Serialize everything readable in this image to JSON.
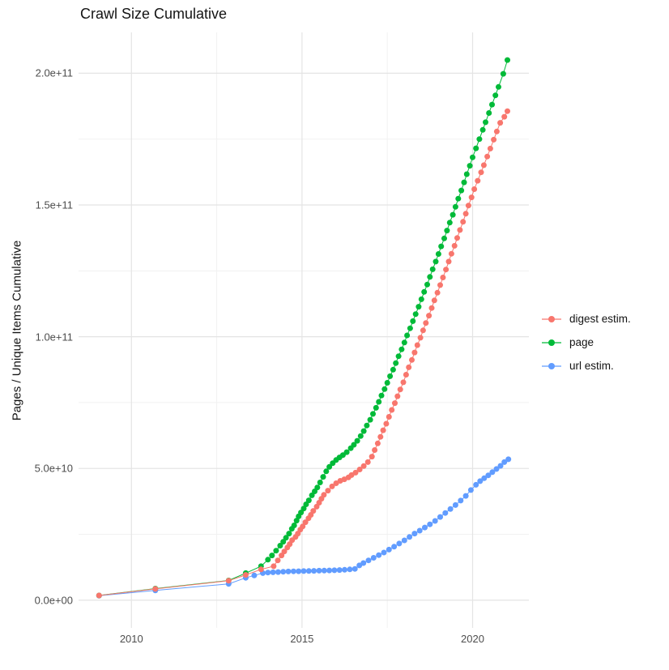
{
  "chart_data": {
    "type": "scatter",
    "title": "Crawl Size Cumulative",
    "xlabel": "",
    "ylabel": "Pages / Unique Items Cumulative",
    "legend_position": "right",
    "grid": "on",
    "colors": {
      "background": "#ffffff",
      "grid_major": "#e4e4e4",
      "grid_minor": "#f1f1f1",
      "title_text": "#141414",
      "tick_text": "#4d4d4d"
    },
    "x_axis": {
      "domain": [
        2008.45,
        2021.65
      ],
      "major_ticks": [
        {
          "value": 2010,
          "label": "2010"
        },
        {
          "value": 2015,
          "label": "2015"
        },
        {
          "value": 2020,
          "label": "2020"
        }
      ],
      "minor_ticks": [
        2012.5,
        2017.5
      ]
    },
    "y_axis": {
      "domain_billions": [
        -10.5,
        215.5
      ],
      "major_ticks": [
        {
          "value": 0,
          "label": "0.0e+00"
        },
        {
          "value": 50,
          "label": "5.0e+10"
        },
        {
          "value": 100,
          "label": "1.0e+11"
        },
        {
          "value": 150,
          "label": "1.5e+11"
        },
        {
          "value": 200,
          "label": "2.0e+11"
        }
      ],
      "minor_ticks": [
        25,
        75,
        125,
        175
      ]
    },
    "value_unit": "billions (1e9) of pages / unique items, cumulative",
    "series": [
      {
        "name": "url estim.",
        "color": "#619CFF",
        "points": [
          [
            2009.05,
            1.7
          ],
          [
            2010.7,
            3.7
          ],
          [
            2012.85,
            6.2
          ],
          [
            2013.35,
            8.5
          ],
          [
            2013.6,
            9.4
          ],
          [
            2013.85,
            10.3
          ],
          [
            2014.0,
            10.5
          ],
          [
            2014.15,
            10.6
          ],
          [
            2014.3,
            10.7
          ],
          [
            2014.45,
            10.8
          ],
          [
            2014.6,
            10.9
          ],
          [
            2014.75,
            10.95
          ],
          [
            2014.9,
            11.0
          ],
          [
            2015.05,
            11.05
          ],
          [
            2015.2,
            11.1
          ],
          [
            2015.35,
            11.15
          ],
          [
            2015.5,
            11.2
          ],
          [
            2015.65,
            11.25
          ],
          [
            2015.8,
            11.3
          ],
          [
            2015.95,
            11.35
          ],
          [
            2016.1,
            11.45
          ],
          [
            2016.25,
            11.55
          ],
          [
            2016.4,
            11.7
          ],
          [
            2016.55,
            11.9
          ],
          [
            2016.68,
            13.2
          ],
          [
            2016.8,
            14.1
          ],
          [
            2016.95,
            15.1
          ],
          [
            2017.1,
            16.1
          ],
          [
            2017.25,
            17.1
          ],
          [
            2017.4,
            18.1
          ],
          [
            2017.55,
            19.2
          ],
          [
            2017.7,
            20.3
          ],
          [
            2017.85,
            21.5
          ],
          [
            2018.0,
            22.7
          ],
          [
            2018.15,
            24.0
          ],
          [
            2018.3,
            25.3
          ],
          [
            2018.45,
            26.4
          ],
          [
            2018.6,
            27.6
          ],
          [
            2018.75,
            28.8
          ],
          [
            2018.9,
            30.1
          ],
          [
            2019.05,
            31.6
          ],
          [
            2019.2,
            33.1
          ],
          [
            2019.35,
            34.6
          ],
          [
            2019.5,
            36.1
          ],
          [
            2019.65,
            37.8
          ],
          [
            2019.8,
            39.6
          ],
          [
            2019.95,
            41.8
          ],
          [
            2020.1,
            43.8
          ],
          [
            2020.22,
            45.2
          ],
          [
            2020.34,
            46.3
          ],
          [
            2020.46,
            47.4
          ],
          [
            2020.58,
            48.6
          ],
          [
            2020.7,
            49.8
          ],
          [
            2020.82,
            51.0
          ],
          [
            2020.93,
            52.4
          ],
          [
            2021.05,
            53.5
          ]
        ]
      },
      {
        "name": "page",
        "color": "#00BA38",
        "points": [
          [
            2009.05,
            1.8
          ],
          [
            2010.7,
            4.4
          ],
          [
            2012.85,
            7.5
          ],
          [
            2013.35,
            10.3
          ],
          [
            2013.8,
            12.9
          ],
          [
            2014.0,
            15.4
          ],
          [
            2014.12,
            17.0
          ],
          [
            2014.24,
            18.8
          ],
          [
            2014.36,
            20.7
          ],
          [
            2014.45,
            22.2
          ],
          [
            2014.53,
            23.7
          ],
          [
            2014.62,
            25.3
          ],
          [
            2014.7,
            27.1
          ],
          [
            2014.77,
            28.4
          ],
          [
            2014.84,
            30.2
          ],
          [
            2014.9,
            31.8
          ],
          [
            2014.97,
            33.3
          ],
          [
            2015.05,
            34.8
          ],
          [
            2015.12,
            36.4
          ],
          [
            2015.2,
            37.9
          ],
          [
            2015.29,
            39.8
          ],
          [
            2015.37,
            41.3
          ],
          [
            2015.45,
            42.8
          ],
          [
            2015.53,
            44.7
          ],
          [
            2015.62,
            46.8
          ],
          [
            2015.71,
            48.9
          ],
          [
            2015.8,
            50.6
          ],
          [
            2015.9,
            52.0
          ],
          [
            2016.0,
            53.2
          ],
          [
            2016.1,
            54.2
          ],
          [
            2016.2,
            55.1
          ],
          [
            2016.31,
            56.2
          ],
          [
            2016.43,
            57.7
          ],
          [
            2016.52,
            59.0
          ],
          [
            2016.62,
            60.5
          ],
          [
            2016.72,
            62.3
          ],
          [
            2016.81,
            64.2
          ],
          [
            2016.9,
            66.3
          ],
          [
            2017.0,
            68.5
          ],
          [
            2017.08,
            70.7
          ],
          [
            2017.17,
            73.0
          ],
          [
            2017.25,
            75.3
          ],
          [
            2017.33,
            77.7
          ],
          [
            2017.42,
            80.1
          ],
          [
            2017.5,
            82.5
          ],
          [
            2017.58,
            85.0
          ],
          [
            2017.67,
            87.5
          ],
          [
            2017.75,
            90.0
          ],
          [
            2017.83,
            92.6
          ],
          [
            2017.92,
            95.2
          ],
          [
            2018.0,
            97.8
          ],
          [
            2018.08,
            100.5
          ],
          [
            2018.17,
            103.2
          ],
          [
            2018.25,
            105.9
          ],
          [
            2018.33,
            108.6
          ],
          [
            2018.42,
            111.4
          ],
          [
            2018.5,
            114.2
          ],
          [
            2018.58,
            117.0
          ],
          [
            2018.67,
            119.8
          ],
          [
            2018.75,
            122.7
          ],
          [
            2018.83,
            125.6
          ],
          [
            2018.92,
            128.5
          ],
          [
            2019.0,
            131.4
          ],
          [
            2019.08,
            134.3
          ],
          [
            2019.17,
            137.3
          ],
          [
            2019.25,
            140.3
          ],
          [
            2019.33,
            143.3
          ],
          [
            2019.42,
            146.3
          ],
          [
            2019.5,
            149.3
          ],
          [
            2019.58,
            152.4
          ],
          [
            2019.67,
            155.5
          ],
          [
            2019.75,
            158.6
          ],
          [
            2019.83,
            161.7
          ],
          [
            2019.92,
            164.9
          ],
          [
            2020.0,
            168.1
          ],
          [
            2020.1,
            171.5
          ],
          [
            2020.2,
            175.0
          ],
          [
            2020.3,
            178.5
          ],
          [
            2020.38,
            181.4
          ],
          [
            2020.48,
            184.9
          ],
          [
            2020.57,
            188.1
          ],
          [
            2020.67,
            191.6
          ],
          [
            2020.76,
            194.8
          ],
          [
            2020.9,
            199.8
          ],
          [
            2021.02,
            205.0
          ]
        ]
      },
      {
        "name": "digest estim.",
        "color": "#F8766D",
        "points": [
          [
            2009.05,
            1.8
          ],
          [
            2010.7,
            4.3
          ],
          [
            2012.85,
            7.4
          ],
          [
            2013.35,
            9.6
          ],
          [
            2013.8,
            11.7
          ],
          [
            2014.17,
            12.9
          ],
          [
            2014.29,
            15.1
          ],
          [
            2014.4,
            17.0
          ],
          [
            2014.48,
            18.5
          ],
          [
            2014.57,
            20.0
          ],
          [
            2014.64,
            21.3
          ],
          [
            2014.71,
            22.8
          ],
          [
            2014.81,
            24.0
          ],
          [
            2014.88,
            25.3
          ],
          [
            2014.95,
            26.8
          ],
          [
            2015.02,
            28.0
          ],
          [
            2015.1,
            29.6
          ],
          [
            2015.19,
            31.1
          ],
          [
            2015.26,
            32.4
          ],
          [
            2015.33,
            33.9
          ],
          [
            2015.43,
            35.5
          ],
          [
            2015.5,
            37.0
          ],
          [
            2015.57,
            38.5
          ],
          [
            2015.64,
            40.0
          ],
          [
            2015.76,
            41.6
          ],
          [
            2015.88,
            43.2
          ],
          [
            2016.0,
            44.4
          ],
          [
            2016.12,
            45.3
          ],
          [
            2016.24,
            45.9
          ],
          [
            2016.36,
            46.6
          ],
          [
            2016.45,
            47.5
          ],
          [
            2016.57,
            48.4
          ],
          [
            2016.69,
            49.6
          ],
          [
            2016.81,
            50.9
          ],
          [
            2016.93,
            52.4
          ],
          [
            2017.05,
            54.5
          ],
          [
            2017.13,
            57.0
          ],
          [
            2017.22,
            59.5
          ],
          [
            2017.3,
            62.0
          ],
          [
            2017.38,
            64.5
          ],
          [
            2017.47,
            67.0
          ],
          [
            2017.55,
            69.6
          ],
          [
            2017.63,
            72.2
          ],
          [
            2017.72,
            74.8
          ],
          [
            2017.8,
            77.4
          ],
          [
            2017.88,
            80.0
          ],
          [
            2017.97,
            82.7
          ],
          [
            2018.05,
            85.6
          ],
          [
            2018.13,
            88.4
          ],
          [
            2018.22,
            91.2
          ],
          [
            2018.3,
            94.0
          ],
          [
            2018.38,
            96.8
          ],
          [
            2018.47,
            99.6
          ],
          [
            2018.55,
            102.4
          ],
          [
            2018.63,
            105.2
          ],
          [
            2018.72,
            108.0
          ],
          [
            2018.8,
            110.9
          ],
          [
            2018.88,
            113.8
          ],
          [
            2018.97,
            116.7
          ],
          [
            2019.05,
            119.6
          ],
          [
            2019.13,
            122.5
          ],
          [
            2019.22,
            125.5
          ],
          [
            2019.3,
            128.5
          ],
          [
            2019.38,
            131.5
          ],
          [
            2019.47,
            134.5
          ],
          [
            2019.55,
            137.5
          ],
          [
            2019.63,
            140.5
          ],
          [
            2019.72,
            143.6
          ],
          [
            2019.8,
            146.7
          ],
          [
            2019.88,
            149.8
          ],
          [
            2019.97,
            152.9
          ],
          [
            2020.05,
            156.0
          ],
          [
            2020.15,
            159.2
          ],
          [
            2020.25,
            162.4
          ],
          [
            2020.33,
            165.1
          ],
          [
            2020.43,
            168.4
          ],
          [
            2020.52,
            171.4
          ],
          [
            2020.62,
            174.8
          ],
          [
            2020.71,
            177.9
          ],
          [
            2020.81,
            181.2
          ],
          [
            2020.93,
            183.5
          ],
          [
            2021.02,
            185.6
          ]
        ]
      }
    ],
    "layout_note_values_read_from_plot": {
      "page_final": "2.05e+11 at 2021",
      "digest_final": "1.86e+11 at 2021",
      "url_final": "5.35e+10 at 2021"
    }
  }
}
